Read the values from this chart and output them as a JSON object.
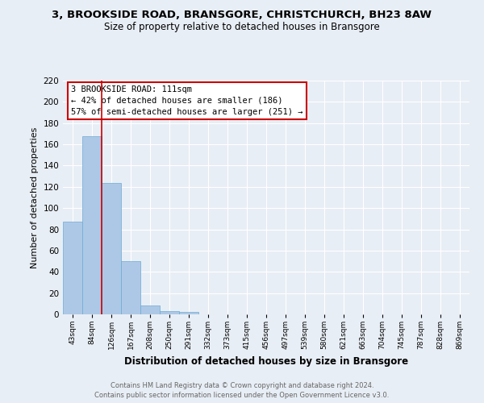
{
  "title1": "3, BROOKSIDE ROAD, BRANSGORE, CHRISTCHURCH, BH23 8AW",
  "title2": "Size of property relative to detached houses in Bransgore",
  "xlabel": "Distribution of detached houses by size in Bransgore",
  "ylabel": "Number of detached properties",
  "categories": [
    "43sqm",
    "84sqm",
    "126sqm",
    "167sqm",
    "208sqm",
    "250sqm",
    "291sqm",
    "332sqm",
    "373sqm",
    "415sqm",
    "456sqm",
    "497sqm",
    "539sqm",
    "580sqm",
    "621sqm",
    "663sqm",
    "704sqm",
    "745sqm",
    "787sqm",
    "828sqm",
    "869sqm"
  ],
  "values": [
    87,
    168,
    124,
    50,
    8,
    3,
    2,
    0,
    0,
    0,
    0,
    0,
    0,
    0,
    0,
    0,
    0,
    0,
    0,
    0,
    0
  ],
  "bar_color": "#adc8e6",
  "bar_edge_color": "#6aaad4",
  "vline_color": "#cc0000",
  "ylim": [
    0,
    220
  ],
  "yticks": [
    0,
    20,
    40,
    60,
    80,
    100,
    120,
    140,
    160,
    180,
    200,
    220
  ],
  "annotation_title": "3 BROOKSIDE ROAD: 111sqm",
  "annotation_line1": "← 42% of detached houses are smaller (186)",
  "annotation_line2": "57% of semi-detached houses are larger (251) →",
  "annotation_box_color": "#ffffff",
  "annotation_box_edge": "#cc0000",
  "footer1": "Contains HM Land Registry data © Crown copyright and database right 2024.",
  "footer2": "Contains public sector information licensed under the Open Government Licence v3.0.",
  "bg_color": "#e8eef5",
  "grid_color": "#ffffff",
  "title1_fontsize": 9.5,
  "title2_fontsize": 8.5
}
